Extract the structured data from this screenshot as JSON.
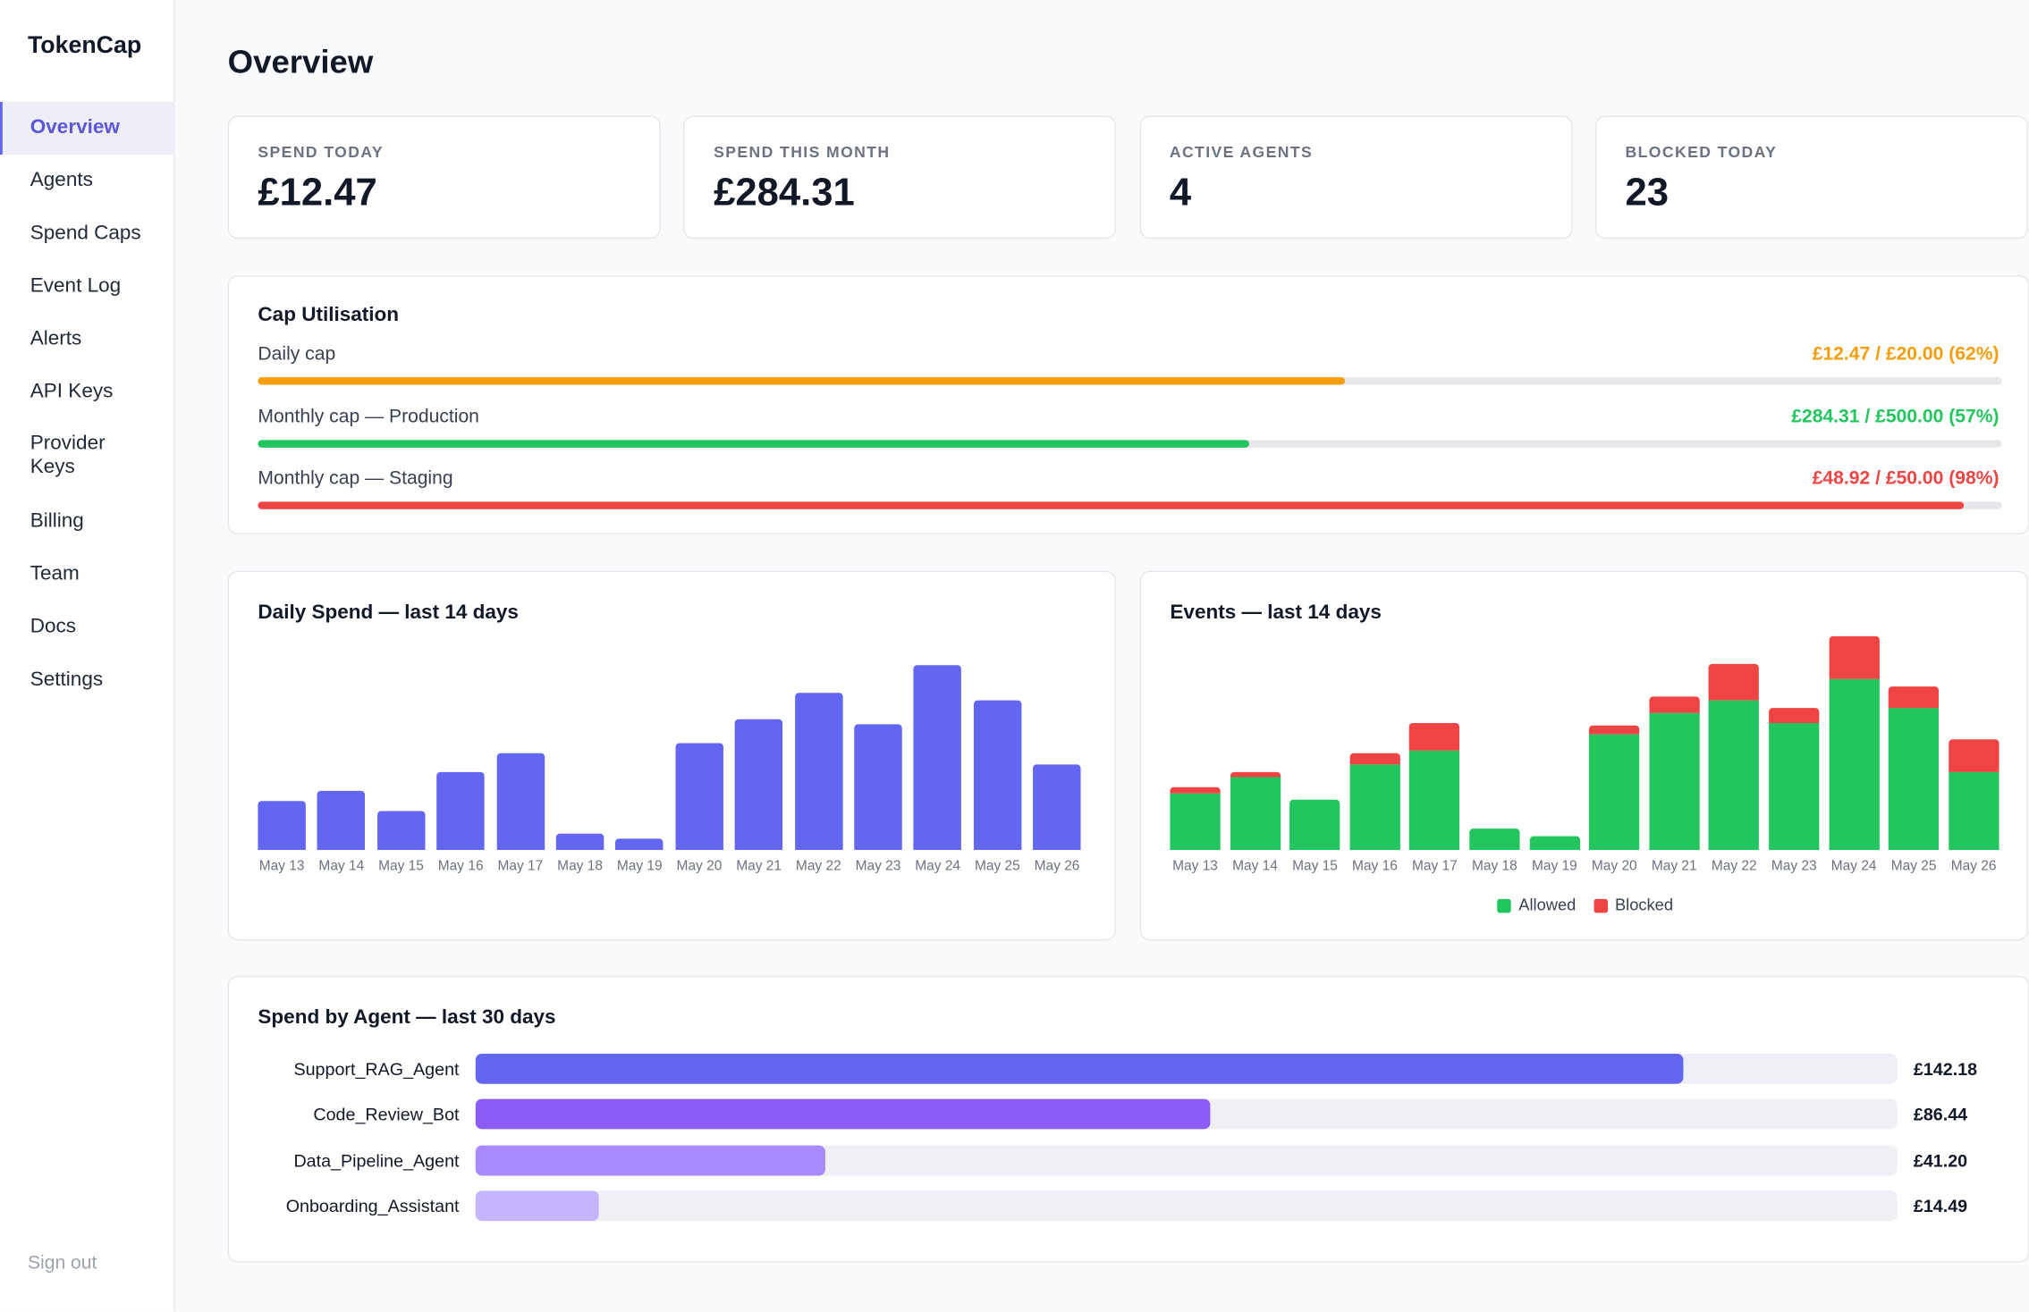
{
  "sidebar": {
    "brand": "TokenCap",
    "nav": [
      "Overview",
      "Agents",
      "Spend Caps",
      "Event Log",
      "Alerts",
      "API Keys",
      "Provider Keys",
      "Billing",
      "Team",
      "Docs",
      "Settings"
    ],
    "active": 0,
    "sign_out": "Sign out"
  },
  "header": {
    "title": "Overview"
  },
  "stats": [
    {
      "label": "SPEND TODAY",
      "value": "£12.47"
    },
    {
      "label": "SPEND THIS MONTH",
      "value": "£284.31"
    },
    {
      "label": "ACTIVE AGENTS",
      "value": "4"
    },
    {
      "label": "BLOCKED TODAY",
      "value": "23"
    }
  ],
  "caps": {
    "title": "Cap Utilisation",
    "rows": [
      {
        "label": "Daily cap",
        "value_label": "£12.47 / £20.00 (62%)",
        "spent": 12.47,
        "cap": 20.0,
        "color": "#f59e0b"
      },
      {
        "label": "Monthly cap — Production",
        "value_label": "£284.31 / £500.00 (57%)",
        "spent": 284.31,
        "cap": 500.0,
        "color": "#22c55e"
      },
      {
        "label": "Monthly cap — Staging",
        "value_label": "£48.92 / £50.00 (98%)",
        "spent": 48.92,
        "cap": 50.0,
        "color": "#ef4444"
      }
    ]
  },
  "daily_spend": {
    "type": "bar",
    "title": "Daily Spend — last 14 days",
    "categories": [
      "May 13",
      "May 14",
      "May 15",
      "May 16",
      "May 17",
      "May 18",
      "May 19",
      "May 20",
      "May 21",
      "May 22",
      "May 23",
      "May 24",
      "May 25",
      "May 26"
    ],
    "values": [
      7.15,
      8.62,
      5.68,
      11.37,
      14.12,
      2.38,
      1.65,
      15.59,
      19.07,
      22.92,
      18.34,
      26.96,
      21.82,
      12.47
    ],
    "color": "#6366f1"
  },
  "events": {
    "type": "stacked_bar",
    "title": "Events — last 14 days",
    "categories": [
      "May 13",
      "May 14",
      "May 15",
      "May 16",
      "May 17",
      "May 18",
      "May 19",
      "May 20",
      "May 21",
      "May 22",
      "May 23",
      "May 24",
      "May 25",
      "May 26"
    ],
    "series": [
      {
        "name": "Allowed",
        "color": "#22c55e",
        "values": [
          40,
          51,
          35,
          60,
          70,
          15,
          10,
          81,
          96,
          105,
          89,
          120,
          100,
          55
        ]
      },
      {
        "name": "Blocked",
        "color": "#ef4444",
        "values": [
          4,
          4,
          0,
          8,
          19,
          0,
          0,
          6,
          12,
          26,
          11,
          30,
          15,
          23
        ]
      }
    ]
  },
  "agents": {
    "type": "hbar",
    "title": "Spend by Agent — last 30 days",
    "categories": [
      "Support_RAG_Agent",
      "Code_Review_Bot",
      "Data_Pipeline_Agent",
      "Onboarding_Assistant"
    ],
    "values": [
      142.18,
      86.44,
      41.2,
      14.49
    ],
    "value_labels": [
      "£142.18",
      "£86.44",
      "£41.20",
      "£14.49"
    ],
    "colors": [
      "#6366f1",
      "#8b5cf6",
      "#a78bfa",
      "#c4b5fd"
    ]
  }
}
